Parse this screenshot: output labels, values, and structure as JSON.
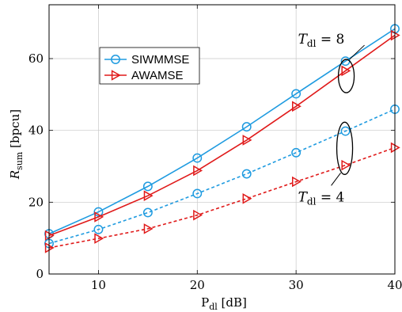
{
  "chart_data": {
    "type": "line",
    "xlabel": {
      "main": "P",
      "sub": "dl",
      "rest": " [dB]"
    },
    "ylabel": {
      "main": "R",
      "sub": "sum",
      "rest": " [bpcu]"
    },
    "xlim": [
      5,
      40
    ],
    "ylim": [
      0,
      75
    ],
    "xticks": [
      10,
      20,
      30,
      40
    ],
    "yticks": [
      0,
      20,
      40,
      60
    ],
    "grid": true,
    "legend_position": "upper-left",
    "x": [
      5,
      10,
      15,
      20,
      25,
      30,
      35,
      40
    ],
    "series": [
      {
        "name": "SIWMMSE",
        "color": "#1f9be0",
        "marker": "circle",
        "dash": "solid",
        "group": "T8",
        "values": [
          11.2,
          17.3,
          24.4,
          32.3,
          41.0,
          50.2,
          59.3,
          68.3
        ]
      },
      {
        "name": "AWAMSE",
        "color": "#e01a1a",
        "marker": "triangle-right",
        "dash": "solid",
        "group": "T8",
        "values": [
          10.7,
          15.9,
          21.8,
          28.8,
          37.3,
          46.7,
          56.6,
          66.5
        ]
      },
      {
        "name": "",
        "color": "#1f9be0",
        "marker": "circle",
        "dash": "dashed",
        "group": "T4",
        "values": [
          8.5,
          12.4,
          17.1,
          22.4,
          27.9,
          33.8,
          39.8,
          45.9
        ]
      },
      {
        "name": "",
        "color": "#e01a1a",
        "marker": "triangle-right",
        "dash": "dashed",
        "group": "T4",
        "values": [
          7.3,
          9.9,
          12.6,
          16.4,
          21.0,
          25.7,
          30.3,
          35.2
        ]
      }
    ],
    "annotations": [
      {
        "id": "t8",
        "main": "T",
        "sub": "dl",
        "value": " = 8",
        "point": [
          35,
          58
        ]
      },
      {
        "id": "t4",
        "main": "T",
        "sub": "dl",
        "value": " = 4",
        "point": [
          35,
          35
        ]
      }
    ]
  }
}
